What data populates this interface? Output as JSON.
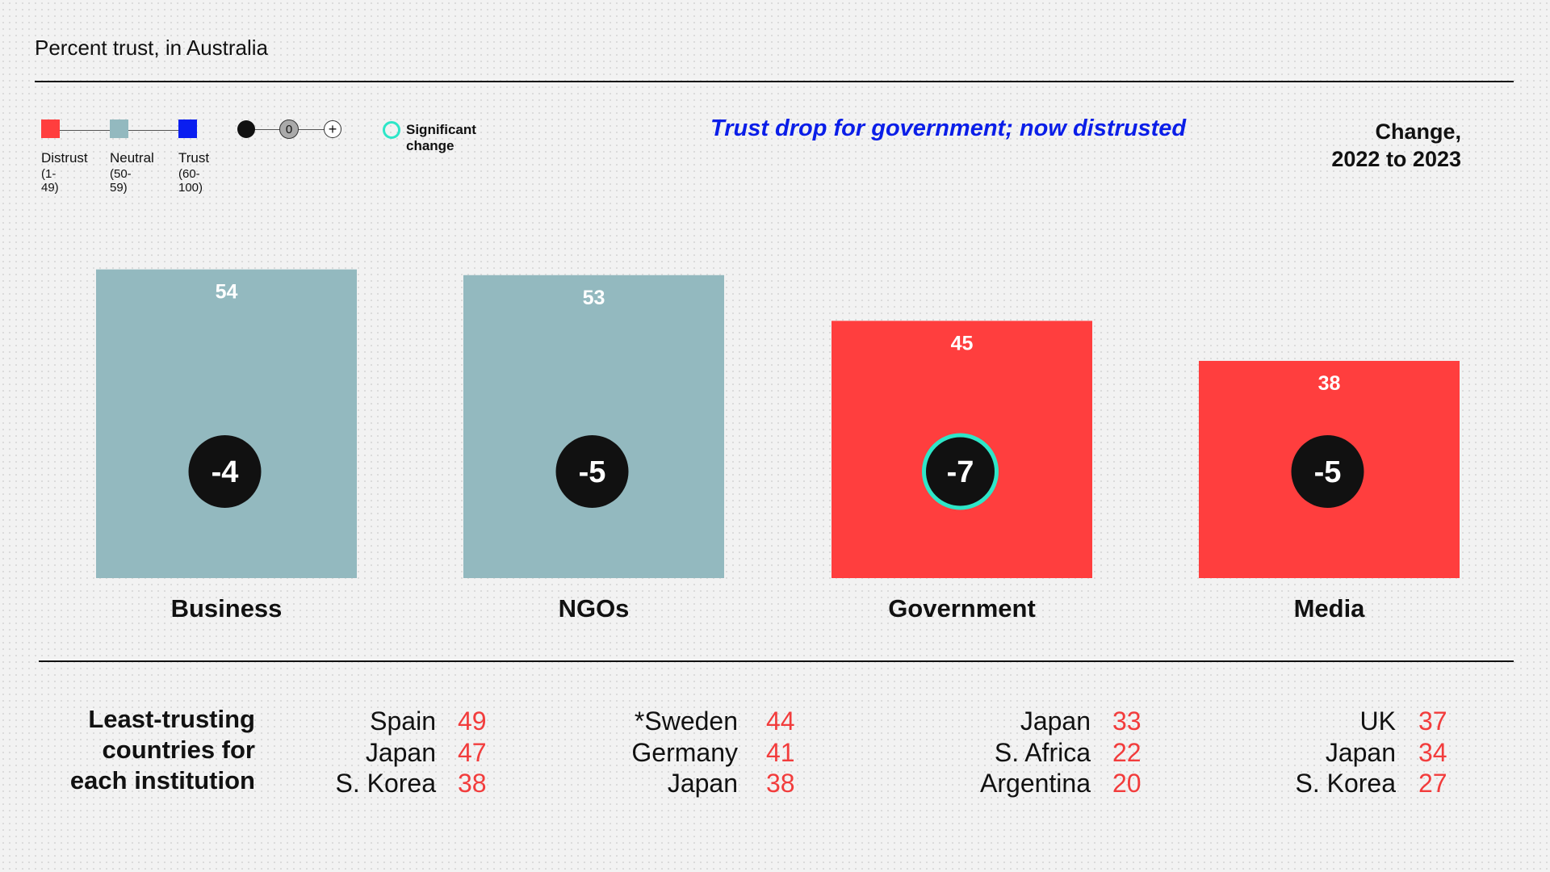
{
  "subtitle": "Percent trust, in Australia",
  "legend": {
    "distrust": {
      "label": "Distrust",
      "range": "(1-49)",
      "color": "#ff3e3e"
    },
    "neutral": {
      "label": "Neutral",
      "range": "(50-59)",
      "color": "#93b9bf"
    },
    "trust": {
      "label": "Trust",
      "range": "(60-100)",
      "color": "#0a1ef0"
    },
    "zero_symbol": "0",
    "plus_symbol": "+",
    "significant_label": "Significant change",
    "significant_color": "#2ee6c8"
  },
  "headline": "Trust drop for government; now distrusted",
  "change_title_line1": "Change,",
  "change_title_line2": "2022 to 2023",
  "chart_data": {
    "type": "bar",
    "categories": [
      "Business",
      "NGOs",
      "Government",
      "Media"
    ],
    "values": [
      54,
      53,
      45,
      38
    ],
    "changes": [
      "-4",
      "-5",
      "-7",
      "-5"
    ],
    "significant": [
      false,
      false,
      true,
      false
    ],
    "bar_colors": [
      "#93b9bf",
      "#93b9bf",
      "#ff3e3e",
      "#ff3e3e"
    ],
    "ylim": [
      0,
      100
    ]
  },
  "least_trusting": {
    "title_lines": [
      "Least-trusting",
      "countries for",
      "each institution"
    ],
    "groups": [
      [
        {
          "country": "Spain",
          "value": "49"
        },
        {
          "country": "Japan",
          "value": "47"
        },
        {
          "country": "S. Korea",
          "value": "38"
        }
      ],
      [
        {
          "country": "*Sweden",
          "value": "44"
        },
        {
          "country": "Germany",
          "value": "41"
        },
        {
          "country": "Japan",
          "value": "38"
        }
      ],
      [
        {
          "country": "Japan",
          "value": "33"
        },
        {
          "country": "S. Africa",
          "value": "22"
        },
        {
          "country": "Argentina",
          "value": "20"
        }
      ],
      [
        {
          "country": "UK",
          "value": "37"
        },
        {
          "country": "Japan",
          "value": "34"
        },
        {
          "country": "S. Korea",
          "value": "27"
        }
      ]
    ]
  }
}
